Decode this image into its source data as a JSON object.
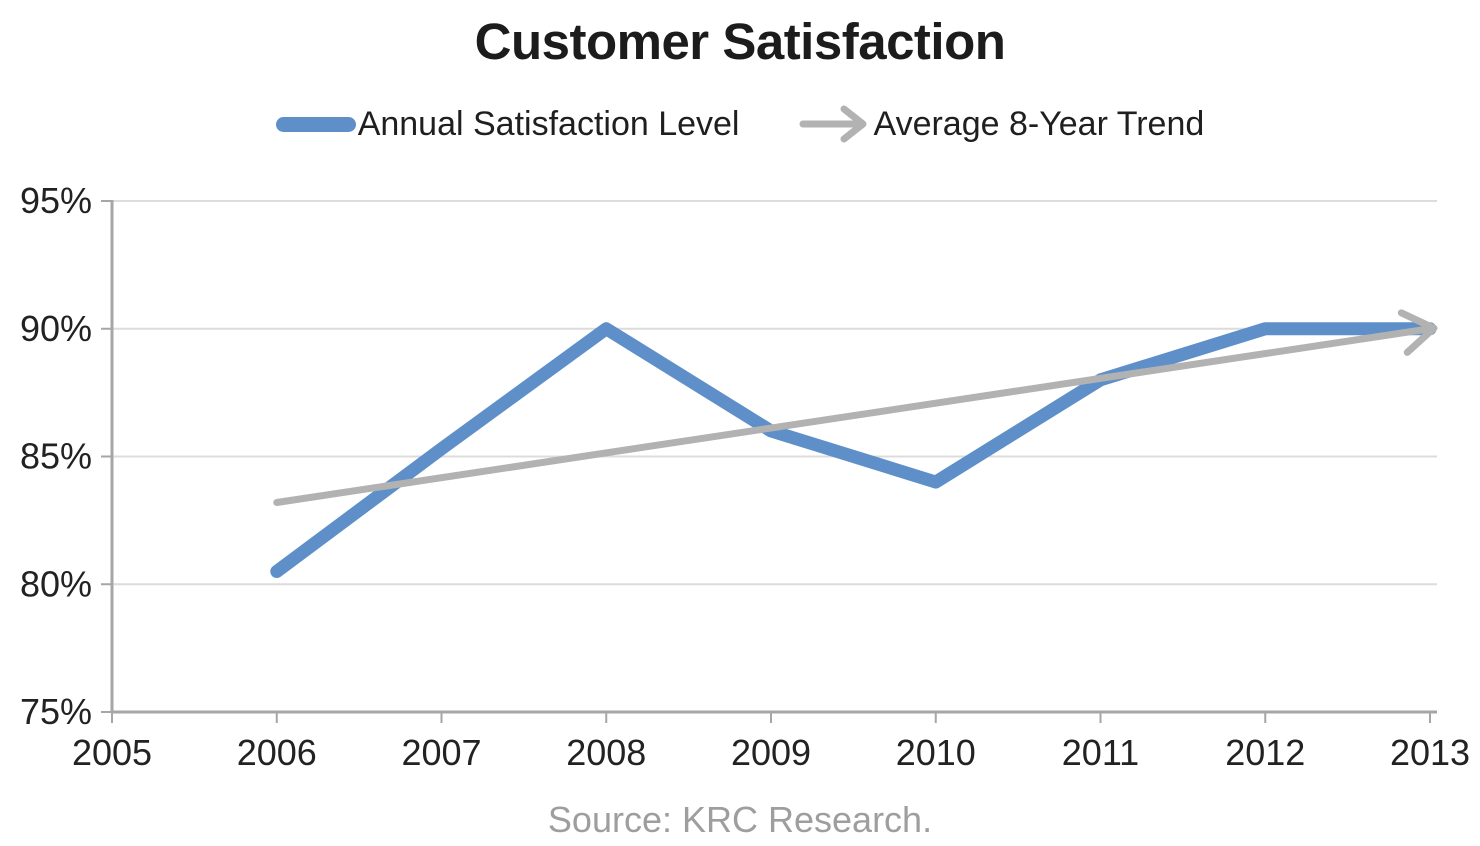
{
  "header": {
    "title": "Customer Satisfaction"
  },
  "legend": {
    "items": [
      {
        "label": "Annual Satisfaction Level",
        "marker": "thick-line",
        "color": "#5e8fc9"
      },
      {
        "label": "Average 8-Year Trend",
        "marker": "arrow",
        "color": "#b2b2b2"
      }
    ]
  },
  "source": {
    "text": "Source: KRC Research."
  },
  "colors": {
    "grid": "#dcdcdc",
    "axis": "#a6a6a6",
    "tick_label": "#222222",
    "title": "#1c1c1c",
    "source_text": "#9e9e9e"
  },
  "chart_data": {
    "type": "line",
    "title": "Customer Satisfaction",
    "xlabel": "",
    "ylabel": "",
    "xlim": [
      2005,
      2013
    ],
    "ylim": [
      75,
      95
    ],
    "grid": "horizontal",
    "legend_position": "top-center",
    "x_ticks": [
      2005,
      2006,
      2007,
      2008,
      2009,
      2010,
      2011,
      2012,
      2013
    ],
    "y_ticks": [
      95,
      90,
      85,
      80,
      75
    ],
    "y_tick_suffix": "%",
    "series": [
      {
        "name": "Annual Satisfaction Level",
        "color": "#5e8fc9",
        "stroke_width": 13,
        "x": [
          2006,
          2007,
          2008,
          2009,
          2010,
          2011,
          2012,
          2013
        ],
        "values": [
          80.5,
          85.3,
          90,
          86,
          84,
          88,
          90,
          90
        ]
      },
      {
        "name": "Average 8-Year Trend",
        "color": "#b2b2b2",
        "stroke_width": 7,
        "arrow_end": true,
        "x": [
          2006,
          2013
        ],
        "values": [
          83.2,
          90
        ]
      }
    ],
    "source": "Source: KRC Research."
  }
}
